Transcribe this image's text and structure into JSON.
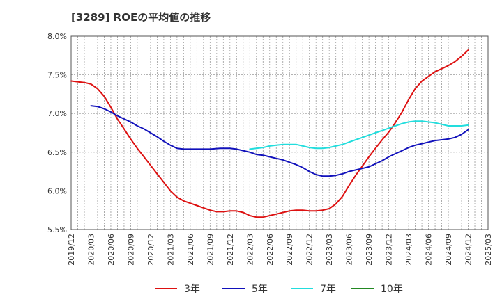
{
  "chart_data": {
    "type": "line",
    "title": "[3289]  ROEの平均値の推移",
    "xlabel": "",
    "ylabel": "",
    "ylim": [
      5.5,
      8.0
    ],
    "y_ticks": [
      "5.5%",
      "6.0%",
      "6.5%",
      "7.0%",
      "7.5%",
      "8.0%"
    ],
    "y_tick_values": [
      5.5,
      6.0,
      6.5,
      7.0,
      7.5,
      8.0
    ],
    "x_ticks": [
      "2019/12",
      "2020/03",
      "2020/06",
      "2020/09",
      "2020/12",
      "2021/03",
      "2021/06",
      "2021/09",
      "2021/12",
      "2022/03",
      "2022/06",
      "2022/09",
      "2022/12",
      "2023/03",
      "2023/06",
      "2023/09",
      "2023/12",
      "2024/03",
      "2024/06",
      "2024/09",
      "2024/12",
      "2025/03"
    ],
    "x_range": [
      0,
      21
    ],
    "grid": true,
    "legend_position": "bottom",
    "series": [
      {
        "name": "3年",
        "color": "#dd1111",
        "points": [
          [
            0,
            7.42
          ],
          [
            0.33,
            7.41
          ],
          [
            0.67,
            7.4
          ],
          [
            1,
            7.38
          ],
          [
            1.33,
            7.32
          ],
          [
            1.67,
            7.22
          ],
          [
            2,
            7.08
          ],
          [
            2.33,
            6.93
          ],
          [
            2.67,
            6.8
          ],
          [
            3,
            6.67
          ],
          [
            3.33,
            6.55
          ],
          [
            3.67,
            6.44
          ],
          [
            4,
            6.33
          ],
          [
            4.33,
            6.22
          ],
          [
            4.67,
            6.11
          ],
          [
            5,
            6.0
          ],
          [
            5.33,
            5.92
          ],
          [
            5.67,
            5.87
          ],
          [
            6,
            5.84
          ],
          [
            6.33,
            5.81
          ],
          [
            6.67,
            5.78
          ],
          [
            7,
            5.75
          ],
          [
            7.33,
            5.73
          ],
          [
            7.67,
            5.73
          ],
          [
            8,
            5.74
          ],
          [
            8.33,
            5.74
          ],
          [
            8.67,
            5.72
          ],
          [
            9,
            5.68
          ],
          [
            9.33,
            5.66
          ],
          [
            9.67,
            5.66
          ],
          [
            10,
            5.68
          ],
          [
            10.33,
            5.7
          ],
          [
            10.67,
            5.72
          ],
          [
            11,
            5.74
          ],
          [
            11.33,
            5.75
          ],
          [
            11.67,
            5.75
          ],
          [
            12,
            5.74
          ],
          [
            12.33,
            5.74
          ],
          [
            12.67,
            5.75
          ],
          [
            13,
            5.77
          ],
          [
            13.33,
            5.83
          ],
          [
            13.67,
            5.93
          ],
          [
            14,
            6.07
          ],
          [
            14.33,
            6.2
          ],
          [
            14.67,
            6.32
          ],
          [
            15,
            6.44
          ],
          [
            15.33,
            6.55
          ],
          [
            15.67,
            6.66
          ],
          [
            16,
            6.76
          ],
          [
            16.33,
            6.88
          ],
          [
            16.67,
            7.02
          ],
          [
            17,
            7.18
          ],
          [
            17.33,
            7.32
          ],
          [
            17.67,
            7.42
          ],
          [
            18,
            7.48
          ],
          [
            18.33,
            7.54
          ],
          [
            18.67,
            7.58
          ],
          [
            19,
            7.62
          ],
          [
            19.33,
            7.67
          ],
          [
            19.67,
            7.74
          ],
          [
            20,
            7.82
          ]
        ]
      },
      {
        "name": "5年",
        "color": "#1111bb",
        "points": [
          [
            1,
            7.1
          ],
          [
            1.33,
            7.09
          ],
          [
            1.67,
            7.06
          ],
          [
            2,
            7.02
          ],
          [
            2.33,
            6.97
          ],
          [
            2.67,
            6.93
          ],
          [
            3,
            6.89
          ],
          [
            3.33,
            6.84
          ],
          [
            3.67,
            6.8
          ],
          [
            4,
            6.75
          ],
          [
            4.33,
            6.7
          ],
          [
            4.67,
            6.64
          ],
          [
            5,
            6.59
          ],
          [
            5.33,
            6.55
          ],
          [
            5.67,
            6.54
          ],
          [
            6,
            6.54
          ],
          [
            6.5,
            6.54
          ],
          [
            7,
            6.54
          ],
          [
            7.5,
            6.55
          ],
          [
            8,
            6.55
          ],
          [
            8.33,
            6.54
          ],
          [
            8.67,
            6.52
          ],
          [
            9,
            6.5
          ],
          [
            9.33,
            6.47
          ],
          [
            9.67,
            6.46
          ],
          [
            10,
            6.44
          ],
          [
            10.33,
            6.42
          ],
          [
            10.67,
            6.4
          ],
          [
            11,
            6.37
          ],
          [
            11.33,
            6.34
          ],
          [
            11.67,
            6.3
          ],
          [
            12,
            6.25
          ],
          [
            12.33,
            6.21
          ],
          [
            12.67,
            6.19
          ],
          [
            13,
            6.19
          ],
          [
            13.33,
            6.2
          ],
          [
            13.67,
            6.22
          ],
          [
            14,
            6.25
          ],
          [
            14.33,
            6.27
          ],
          [
            14.67,
            6.29
          ],
          [
            15,
            6.31
          ],
          [
            15.33,
            6.35
          ],
          [
            15.67,
            6.39
          ],
          [
            16,
            6.44
          ],
          [
            16.33,
            6.48
          ],
          [
            16.67,
            6.52
          ],
          [
            17,
            6.56
          ],
          [
            17.33,
            6.59
          ],
          [
            17.67,
            6.61
          ],
          [
            18,
            6.63
          ],
          [
            18.33,
            6.65
          ],
          [
            18.67,
            6.66
          ],
          [
            19,
            6.67
          ],
          [
            19.33,
            6.69
          ],
          [
            19.67,
            6.73
          ],
          [
            20,
            6.79
          ]
        ]
      },
      {
        "name": "7年",
        "color": "#22dddd",
        "points": [
          [
            9,
            6.54
          ],
          [
            9.33,
            6.55
          ],
          [
            9.67,
            6.56
          ],
          [
            10,
            6.58
          ],
          [
            10.33,
            6.59
          ],
          [
            10.67,
            6.6
          ],
          [
            11,
            6.6
          ],
          [
            11.33,
            6.6
          ],
          [
            11.67,
            6.58
          ],
          [
            12,
            6.56
          ],
          [
            12.33,
            6.55
          ],
          [
            12.67,
            6.55
          ],
          [
            13,
            6.56
          ],
          [
            13.33,
            6.58
          ],
          [
            13.67,
            6.6
          ],
          [
            14,
            6.63
          ],
          [
            14.33,
            6.66
          ],
          [
            14.67,
            6.69
          ],
          [
            15,
            6.72
          ],
          [
            15.33,
            6.75
          ],
          [
            15.67,
            6.78
          ],
          [
            16,
            6.81
          ],
          [
            16.33,
            6.84
          ],
          [
            16.67,
            6.87
          ],
          [
            17,
            6.89
          ],
          [
            17.33,
            6.9
          ],
          [
            17.67,
            6.9
          ],
          [
            18,
            6.89
          ],
          [
            18.33,
            6.88
          ],
          [
            18.67,
            6.86
          ],
          [
            19,
            6.84
          ],
          [
            19.33,
            6.84
          ],
          [
            19.67,
            6.84
          ],
          [
            20,
            6.85
          ]
        ]
      },
      {
        "name": "10年",
        "color": "#228822",
        "points": []
      }
    ]
  }
}
